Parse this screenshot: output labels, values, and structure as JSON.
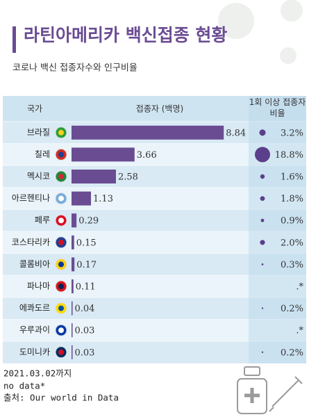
{
  "chart_data": {
    "type": "bar",
    "title": "라틴아메리카 백신접종 현황",
    "subtitle": "코로나 백신 접종자수와 인구비율",
    "category_header": "국가",
    "categories": [
      "브라질",
      "칠레",
      "멕시코",
      "아르헨티나",
      "페루",
      "코스타리카",
      "콜롬비아",
      "파나마",
      "에콰도르",
      "우루과이",
      "도미니카"
    ],
    "series": [
      {
        "name": "접종자 (백명)",
        "color": "#6a4c93",
        "values": [
          8.84,
          3.66,
          2.58,
          1.13,
          0.29,
          0.15,
          0.17,
          0.11,
          0.04,
          0.03,
          0.03
        ]
      },
      {
        "name": "1회 이상 접종자 비율",
        "color": "#5b3f8a",
        "values": [
          3.2,
          18.8,
          1.6,
          1.8,
          0.9,
          2.0,
          0.3,
          null,
          0.2,
          null,
          0.2
        ],
        "value_labels": [
          "3.2%",
          "18.8%",
          "1.6%",
          "1.8%",
          "0.9%",
          "2.0%",
          "0.3%",
          ".*",
          "0.2%",
          ".*",
          "0.2%"
        ]
      }
    ],
    "xlim": [
      0,
      10
    ]
  },
  "notes": [
    "2021.03.02까지",
    "no data*",
    "출처: Our world in Data"
  ]
}
